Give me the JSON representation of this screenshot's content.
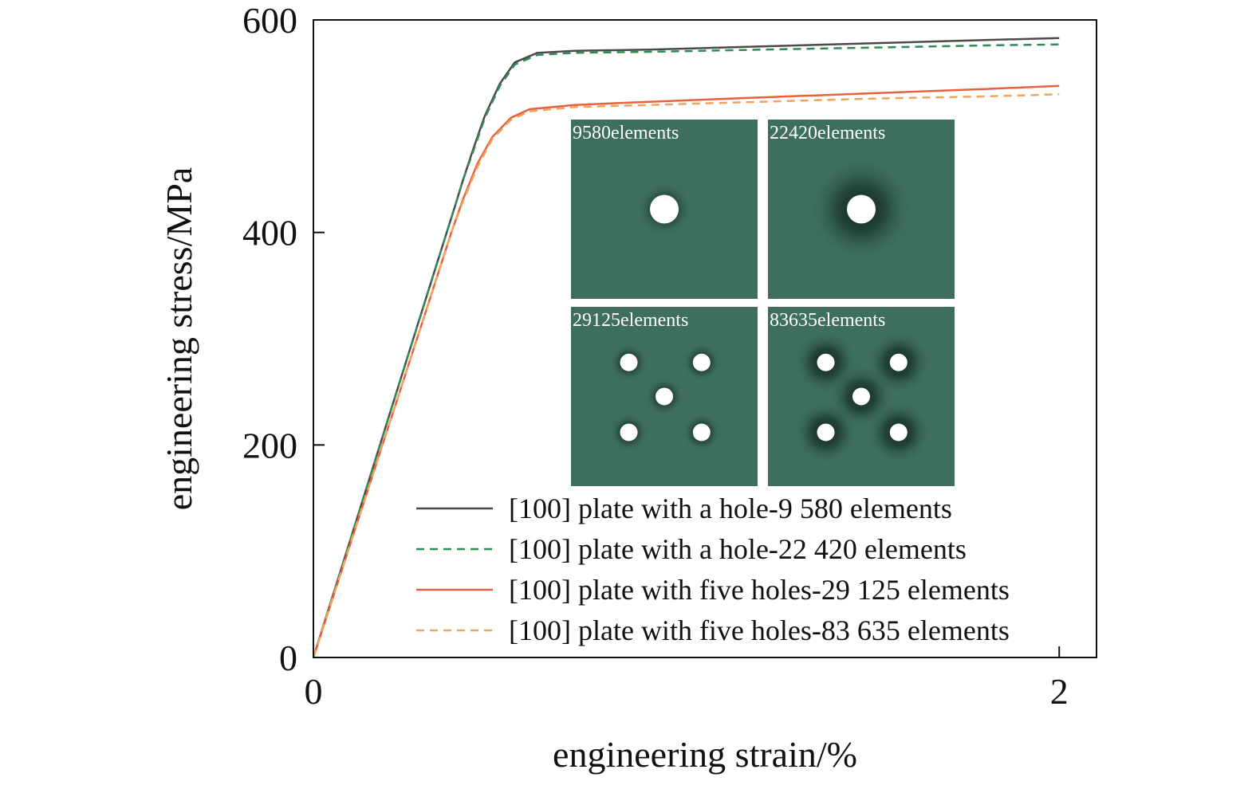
{
  "chart_data": {
    "type": "line",
    "xlabel": "engineering strain/%",
    "ylabel": "engineering stress/MPa",
    "xlim": [
      0,
      2.1
    ],
    "ylim": [
      0,
      600
    ],
    "xticks": [
      0,
      2
    ],
    "yticks": [
      0,
      200,
      400,
      600
    ],
    "grid": false,
    "legend_position": "bottom-right",
    "series": [
      {
        "name": "[100] plate with a hole-9 580 elements",
        "style": "solid",
        "color": "#4a4a4a",
        "points": [
          [
            0,
            0
          ],
          [
            0.1,
            112
          ],
          [
            0.2,
            224
          ],
          [
            0.3,
            336
          ],
          [
            0.38,
            425
          ],
          [
            0.4,
            448
          ],
          [
            0.43,
            480
          ],
          [
            0.46,
            510
          ],
          [
            0.5,
            540
          ],
          [
            0.54,
            560
          ],
          [
            0.6,
            569
          ],
          [
            0.7,
            571
          ],
          [
            0.9,
            572
          ],
          [
            1.2,
            575
          ],
          [
            1.5,
            578
          ],
          [
            1.8,
            581
          ],
          [
            2.0,
            583
          ]
        ]
      },
      {
        "name": "[100] plate with a hole-22 420 elements",
        "style": "dashed",
        "color": "#2e8b57",
        "points": [
          [
            0,
            0
          ],
          [
            0.1,
            112
          ],
          [
            0.2,
            224
          ],
          [
            0.3,
            336
          ],
          [
            0.38,
            425
          ],
          [
            0.4,
            448
          ],
          [
            0.43,
            478
          ],
          [
            0.46,
            508
          ],
          [
            0.5,
            538
          ],
          [
            0.54,
            558
          ],
          [
            0.6,
            567
          ],
          [
            0.7,
            569
          ],
          [
            0.9,
            570
          ],
          [
            1.2,
            572
          ],
          [
            1.5,
            574
          ],
          [
            1.8,
            576
          ],
          [
            2.0,
            577
          ]
        ]
      },
      {
        "name": "[100] plate with five holes-29 125 elements",
        "style": "solid",
        "color": "#e8603c",
        "points": [
          [
            0,
            0
          ],
          [
            0.1,
            108
          ],
          [
            0.2,
            216
          ],
          [
            0.3,
            324
          ],
          [
            0.37,
            400
          ],
          [
            0.4,
            430
          ],
          [
            0.44,
            465
          ],
          [
            0.48,
            490
          ],
          [
            0.53,
            508
          ],
          [
            0.58,
            516
          ],
          [
            0.7,
            520
          ],
          [
            0.9,
            523
          ],
          [
            1.2,
            527
          ],
          [
            1.5,
            531
          ],
          [
            1.8,
            535
          ],
          [
            2.0,
            538
          ]
        ]
      },
      {
        "name": "[100] plate with five holes-83 635 elements",
        "style": "dashed",
        "color": "#f2a35a",
        "points": [
          [
            0,
            0
          ],
          [
            0.1,
            108
          ],
          [
            0.2,
            216
          ],
          [
            0.3,
            324
          ],
          [
            0.37,
            400
          ],
          [
            0.4,
            428
          ],
          [
            0.44,
            462
          ],
          [
            0.48,
            488
          ],
          [
            0.53,
            506
          ],
          [
            0.58,
            514
          ],
          [
            0.7,
            518
          ],
          [
            0.9,
            520
          ],
          [
            1.2,
            523
          ],
          [
            1.5,
            526
          ],
          [
            1.8,
            528
          ],
          [
            2.0,
            530
          ]
        ]
      }
    ],
    "inset": {
      "panels": [
        {
          "label": "9580elements",
          "holes": "one"
        },
        {
          "label": "22420elements",
          "holes": "one"
        },
        {
          "label": "29125elements",
          "holes": "five"
        },
        {
          "label": "83635elements",
          "holes": "five"
        }
      ],
      "panel_color": "#3d6e5e",
      "hole_color": "#ffffff"
    }
  }
}
